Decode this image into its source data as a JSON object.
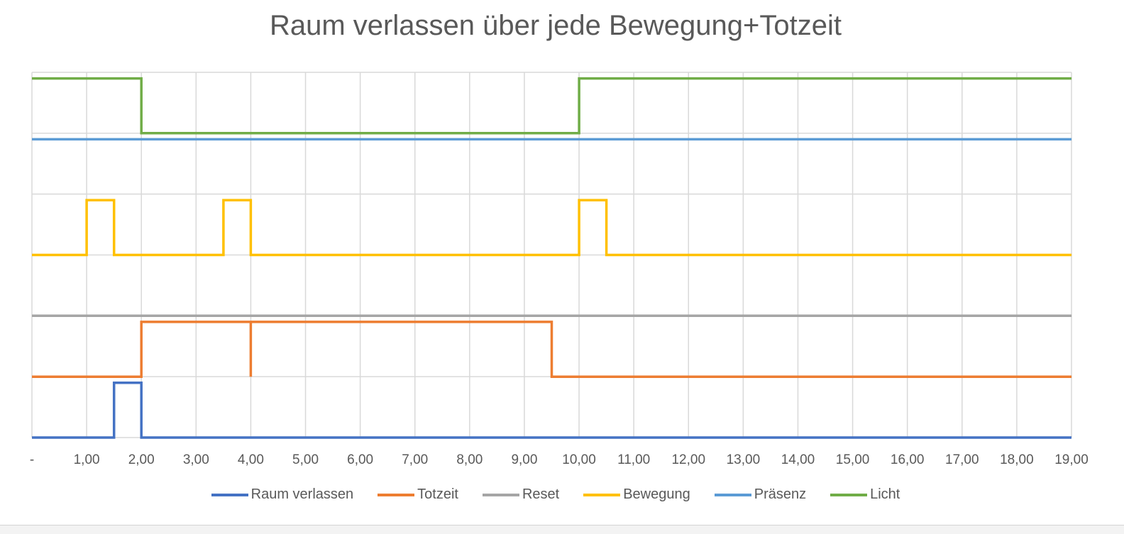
{
  "chart_data": {
    "type": "line",
    "step": true,
    "title": "Raum verlassen über jede Bewegung+Totzeit",
    "xlim": [
      0,
      19
    ],
    "ylim": [
      0,
      6
    ],
    "y_grid": [
      0,
      1,
      2,
      3,
      4,
      5,
      6
    ],
    "x_ticks": [
      {
        "v": 0,
        "label": "-"
      },
      {
        "v": 1,
        "label": "1,00"
      },
      {
        "v": 2,
        "label": "2,00"
      },
      {
        "v": 3,
        "label": "3,00"
      },
      {
        "v": 4,
        "label": "4,00"
      },
      {
        "v": 5,
        "label": "5,00"
      },
      {
        "v": 6,
        "label": "6,00"
      },
      {
        "v": 7,
        "label": "7,00"
      },
      {
        "v": 8,
        "label": "8,00"
      },
      {
        "v": 9,
        "label": "9,00"
      },
      {
        "v": 10,
        "label": "10,00"
      },
      {
        "v": 11,
        "label": "11,00"
      },
      {
        "v": 12,
        "label": "12,00"
      },
      {
        "v": 13,
        "label": "13,00"
      },
      {
        "v": 14,
        "label": "14,00"
      },
      {
        "v": 15,
        "label": "15,00"
      },
      {
        "v": 16,
        "label": "16,00"
      },
      {
        "v": 17,
        "label": "17,00"
      },
      {
        "v": 18,
        "label": "18,00"
      },
      {
        "v": 19,
        "label": "19,00"
      }
    ],
    "grid": true,
    "legend_position": "bottom",
    "series": [
      {
        "name": "Raum verlassen",
        "color": "#4472C4",
        "points": [
          [
            0,
            0
          ],
          [
            1.5,
            0
          ],
          [
            1.5,
            0.9
          ],
          [
            2,
            0.9
          ],
          [
            2,
            0
          ],
          [
            19,
            0
          ]
        ]
      },
      {
        "name": "Totzeit",
        "color": "#ED7D31",
        "points": [
          [
            0,
            1
          ],
          [
            2,
            1
          ],
          [
            2,
            1.9
          ],
          [
            4,
            1.9
          ],
          [
            4,
            1
          ],
          [
            4,
            1.9
          ],
          [
            9.5,
            1.9
          ],
          [
            9.5,
            1
          ],
          [
            19,
            1
          ]
        ]
      },
      {
        "name": "Reset",
        "color": "#A5A5A5",
        "points": [
          [
            0,
            2
          ],
          [
            19,
            2
          ]
        ]
      },
      {
        "name": "Bewegung",
        "color": "#FFC000",
        "points": [
          [
            0,
            3
          ],
          [
            1,
            3
          ],
          [
            1,
            3.9
          ],
          [
            1.5,
            3.9
          ],
          [
            1.5,
            3
          ],
          [
            3.5,
            3
          ],
          [
            3.5,
            3.9
          ],
          [
            4,
            3.9
          ],
          [
            4,
            3
          ],
          [
            10,
            3
          ],
          [
            10,
            3.9
          ],
          [
            10.5,
            3.9
          ],
          [
            10.5,
            3
          ],
          [
            19,
            3
          ]
        ]
      },
      {
        "name": "Präsenz",
        "color": "#5B9BD5",
        "points": [
          [
            0,
            4.9
          ],
          [
            19,
            4.9
          ]
        ]
      },
      {
        "name": "Licht",
        "color": "#70AD47",
        "points": [
          [
            0,
            5.9
          ],
          [
            2,
            5.9
          ],
          [
            2,
            5
          ],
          [
            10,
            5
          ],
          [
            10,
            5.9
          ],
          [
            19,
            5.9
          ]
        ]
      }
    ]
  }
}
